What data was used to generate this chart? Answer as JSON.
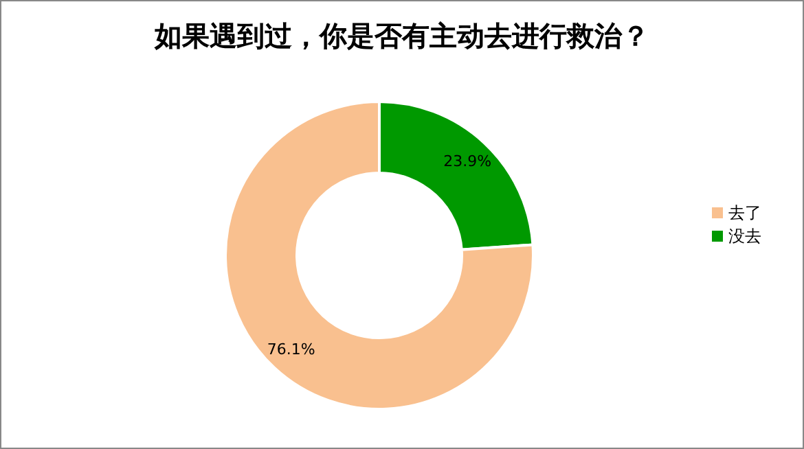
{
  "chart_data": {
    "type": "donut",
    "title": "如果遇到过，你是否有主动去进行救治？",
    "categories": [
      "没去",
      "去了"
    ],
    "values": [
      23.9,
      76.1
    ],
    "colors": [
      "#009900",
      "#f9c08f"
    ],
    "value_labels": [
      "23.9%",
      "76.1%"
    ],
    "legend": "right"
  }
}
